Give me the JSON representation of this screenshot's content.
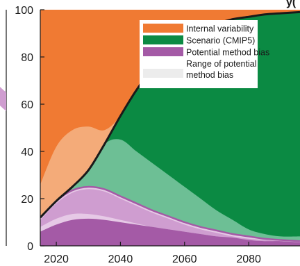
{
  "chart_data": {
    "type": "area",
    "title": "",
    "xlabel": "",
    "ylabel": "",
    "xlim": [
      2015,
      2096
    ],
    "ylim": [
      0,
      100
    ],
    "x_ticks": [
      2020,
      2040,
      2060,
      2080
    ],
    "y_ticks": [
      0,
      20,
      40,
      60,
      80,
      100
    ],
    "x_tick_labels": [
      "2020",
      "2040",
      "2060",
      "2080"
    ],
    "y_tick_labels": [
      "0",
      "20",
      "40",
      "60",
      "80",
      "100"
    ],
    "legend_position": "top-right",
    "colors": {
      "internal_variability": "#f07a33",
      "internal_variability_light": "#f4ab79",
      "scenario": "#0b8a43",
      "scenario_light": "#6dbf95",
      "method_bias": "#a45aa6",
      "method_bias_light": "#cf9dd0",
      "method_bias_pale": "#e6c9e6",
      "range_bias": "#ececec",
      "boundary": "#1a1a1a"
    },
    "legend": [
      {
        "label": "Internal variability",
        "color": "#f07a33"
      },
      {
        "label": "Scenario (CMIP5)",
        "color": "#0b8a43"
      },
      {
        "label": "Potential method bias",
        "color": "#a45aa6"
      },
      {
        "label": "Range of potential method bias",
        "color": "#ececec"
      }
    ],
    "x": [
      2015,
      2020,
      2025,
      2030,
      2035,
      2040,
      2045,
      2050,
      2055,
      2060,
      2065,
      2070,
      2075,
      2080,
      2085,
      2090,
      2096
    ],
    "series": [
      {
        "role": "scenario_upper",
        "values": [
          12,
          19,
          25,
          32,
          43,
          55,
          66,
          75,
          82,
          87,
          91,
          94,
          96,
          97,
          98,
          98.5,
          99
        ]
      },
      {
        "role": "scenario_lower",
        "values": [
          26,
          42,
          49,
          50.5,
          49,
          45,
          40,
          35,
          30,
          25,
          20,
          15,
          11,
          7,
          5,
          4,
          4
        ]
      },
      {
        "role": "bias_outer_upper",
        "values": [
          12,
          19,
          23.5,
          25,
          24,
          21,
          18,
          15,
          12.5,
          10,
          8,
          6.5,
          5,
          4,
          3,
          2.5,
          2
        ]
      },
      {
        "role": "bias_outer_lower",
        "values": [
          6,
          9,
          11,
          11.5,
          11,
          10,
          9,
          8,
          7,
          6,
          5,
          4,
          3.5,
          2.5,
          2,
          2,
          1.5
        ]
      },
      {
        "role": "bias_inner_upper",
        "values": [
          11,
          18,
          22.5,
          24,
          23,
          20,
          17,
          14,
          11.5,
          9,
          7,
          5.5,
          4,
          3,
          2.5,
          2,
          1.5
        ]
      },
      {
        "role": "bias_inner_lower",
        "values": [
          8,
          11.5,
          13.5,
          13.5,
          12.5,
          11,
          9.5,
          8,
          7,
          6,
          5,
          4,
          3.2,
          2.5,
          2,
          1.5,
          1.2
        ]
      }
    ]
  }
}
